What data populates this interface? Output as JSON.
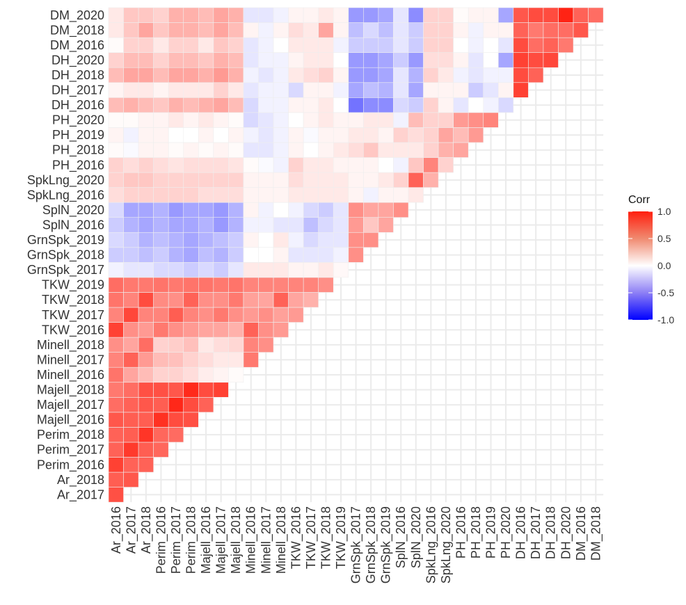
{
  "chart_data": {
    "type": "heatmap",
    "title": "",
    "xlabel": "",
    "ylabel": "",
    "variables": [
      "Ar_2016",
      "Ar_2017",
      "Ar_2018",
      "Perim_2016",
      "Perim_2017",
      "Perim_2018",
      "Majell_2016",
      "Majell_2017",
      "Majell_2018",
      "Minell_2016",
      "Minell_2017",
      "Minell_2018",
      "TKW_2016",
      "TKW_2017",
      "TKW_2018",
      "TKW_2019",
      "GrnSpk_2017",
      "GrnSpk_2018",
      "GrnSpk_2019",
      "SplN_2016",
      "SplN_2020",
      "SpkLng_2016",
      "SpkLng_2020",
      "PH_2016",
      "PH_2018",
      "PH_2019",
      "PH_2020",
      "DH_2016",
      "DH_2017",
      "DH_2018",
      "DH_2020",
      "DM_2016",
      "DM_2018",
      "DM_2020"
    ],
    "x_labels": [
      "Ar_2016",
      "Ar_2017",
      "Ar_2018",
      "Perim_2016",
      "Perim_2017",
      "Perim_2018",
      "Majell_2016",
      "Majell_2017",
      "Majell_2018",
      "Minell_2016",
      "Minell_2017",
      "Minell_2018",
      "TKW_2016",
      "TKW_2017",
      "TKW_2018",
      "TKW_2019",
      "GrnSpk_2017",
      "GrnSpk_2018",
      "GrnSpk_2019",
      "SplN_2016",
      "SplN_2020",
      "SpkLng_2016",
      "SpkLng_2020",
      "PH_2016",
      "PH_2018",
      "PH_2019",
      "PH_2020",
      "DH_2016",
      "DH_2017",
      "DH_2018",
      "DH_2020",
      "DM_2016",
      "DM_2018"
    ],
    "y_labels": [
      "Ar_2017",
      "Ar_2018",
      "Perim_2016",
      "Perim_2017",
      "Perim_2018",
      "Majell_2016",
      "Majell_2017",
      "Majell_2018",
      "Minell_2016",
      "Minell_2017",
      "Minell_2018",
      "TKW_2016",
      "TKW_2017",
      "TKW_2018",
      "TKW_2019",
      "GrnSpk_2017",
      "GrnSpk_2018",
      "GrnSpk_2019",
      "SplN_2016",
      "SplN_2020",
      "SpkLng_2016",
      "SpkLng_2020",
      "PH_2016",
      "PH_2018",
      "PH_2019",
      "PH_2020",
      "DH_2016",
      "DH_2017",
      "DH_2018",
      "DH_2020",
      "DM_2016",
      "DM_2018",
      "DM_2020"
    ],
    "values": [
      [
        0.78
      ],
      [
        0.72,
        0.75
      ],
      [
        0.85,
        0.7,
        0.7
      ],
      [
        0.7,
        0.88,
        0.72,
        0.68
      ],
      [
        0.7,
        0.72,
        0.9,
        0.68,
        0.66
      ],
      [
        0.75,
        0.72,
        0.72,
        0.92,
        0.8,
        0.78
      ],
      [
        0.65,
        0.7,
        0.75,
        0.72,
        0.96,
        0.8,
        0.7
      ],
      [
        0.6,
        0.65,
        0.78,
        0.78,
        0.75,
        0.95,
        0.8,
        0.85
      ],
      [
        0.62,
        0.4,
        0.3,
        0.2,
        0.2,
        0.15,
        0.08,
        0.05,
        0.02
      ],
      [
        0.55,
        0.7,
        0.45,
        0.3,
        0.28,
        0.2,
        0.15,
        0.1,
        0.1,
        0.6
      ],
      [
        0.5,
        0.4,
        0.65,
        0.2,
        0.22,
        0.28,
        0.1,
        0.15,
        0.18,
        0.55,
        0.5
      ],
      [
        0.85,
        0.5,
        0.45,
        0.6,
        0.5,
        0.45,
        0.4,
        0.4,
        0.35,
        0.7,
        0.5,
        0.45
      ],
      [
        0.55,
        0.82,
        0.55,
        0.55,
        0.72,
        0.55,
        0.5,
        0.6,
        0.5,
        0.45,
        0.5,
        0.42,
        0.45
      ],
      [
        0.62,
        0.55,
        0.8,
        0.52,
        0.5,
        0.7,
        0.5,
        0.5,
        0.6,
        0.42,
        0.4,
        0.7,
        0.4,
        0.35
      ],
      [
        0.65,
        0.6,
        0.6,
        0.62,
        0.6,
        0.62,
        0.62,
        0.6,
        0.62,
        0.55,
        0.55,
        0.55,
        0.55,
        0.55,
        0.5
      ],
      [
        -0.05,
        -0.1,
        -0.1,
        -0.15,
        -0.15,
        -0.2,
        -0.15,
        -0.2,
        -0.1,
        0.1,
        0.1,
        0.1,
        0.05,
        0.05,
        0.1,
        0.03
      ],
      [
        -0.2,
        -0.2,
        -0.25,
        -0.2,
        -0.3,
        -0.35,
        -0.25,
        -0.3,
        -0.2,
        0.0,
        0.0,
        0.05,
        -0.1,
        -0.1,
        -0.1,
        -0.05,
        0.5
      ],
      [
        -0.15,
        -0.2,
        -0.3,
        -0.25,
        -0.3,
        -0.35,
        -0.3,
        -0.25,
        -0.2,
        0.05,
        0.0,
        0.1,
        -0.05,
        -0.15,
        -0.1,
        -0.1,
        0.5,
        0.5
      ],
      [
        -0.2,
        -0.3,
        -0.35,
        -0.3,
        -0.35,
        -0.35,
        -0.3,
        -0.4,
        -0.3,
        -0.05,
        -0.05,
        -0.1,
        -0.1,
        -0.25,
        -0.15,
        -0.1,
        0.45,
        0.25,
        0.4
      ],
      [
        -0.15,
        -0.35,
        -0.35,
        -0.3,
        -0.4,
        -0.35,
        -0.35,
        -0.4,
        -0.3,
        0.05,
        -0.05,
        0.0,
        -0.05,
        -0.15,
        -0.2,
        -0.1,
        0.5,
        0.4,
        0.4,
        0.5
      ],
      [
        0.15,
        0.2,
        0.2,
        0.2,
        0.2,
        0.2,
        0.15,
        0.15,
        0.15,
        0.05,
        0.05,
        0.05,
        0.1,
        0.1,
        0.1,
        0.1,
        0.05,
        -0.05,
        0.05,
        0.05,
        0.1
      ],
      [
        0.2,
        0.25,
        0.25,
        0.2,
        0.2,
        0.2,
        0.2,
        0.2,
        0.2,
        0.05,
        0.05,
        0.05,
        0.15,
        0.1,
        0.1,
        0.1,
        0.05,
        0.05,
        0.1,
        0.2,
        0.7,
        0.35
      ],
      [
        0.2,
        0.15,
        0.2,
        0.15,
        0.12,
        0.15,
        0.15,
        0.15,
        0.12,
        0.02,
        -0.02,
        -0.05,
        0.2,
        0.1,
        0.1,
        0.05,
        0.05,
        0.05,
        0.0,
        -0.05,
        0.25,
        0.55,
        0.2
      ],
      [
        0.02,
        -0.02,
        0.05,
        0.05,
        0.02,
        0.05,
        0.02,
        0.05,
        0.02,
        -0.1,
        -0.1,
        -0.05,
        0.05,
        0.0,
        0.05,
        0.1,
        0.15,
        0.25,
        0.1,
        0.1,
        0.1,
        0.2,
        0.35,
        0.4
      ],
      [
        0.05,
        -0.05,
        0.05,
        0.05,
        0.0,
        0.0,
        0.05,
        0.0,
        0.05,
        -0.05,
        -0.1,
        -0.05,
        0.05,
        -0.02,
        0.05,
        0.05,
        0.1,
        0.1,
        0.05,
        0.2,
        0.15,
        0.2,
        0.4,
        0.3,
        0.45
      ],
      [
        0.02,
        0.02,
        0.05,
        0.05,
        0.1,
        0.05,
        0.1,
        0.05,
        0.02,
        -0.15,
        -0.1,
        -0.05,
        0.0,
        0.05,
        0.1,
        0.05,
        0.05,
        0.1,
        0.1,
        -0.05,
        0.3,
        0.2,
        0.2,
        0.45,
        0.5,
        0.55
      ],
      [
        0.3,
        0.35,
        0.3,
        0.25,
        0.35,
        0.3,
        0.35,
        0.4,
        0.3,
        -0.15,
        -0.05,
        -0.05,
        0.05,
        0.05,
        0.1,
        0.0,
        -0.55,
        -0.45,
        -0.45,
        -0.15,
        -0.2,
        0.2,
        0.05,
        -0.1,
        0.0,
        -0.05,
        -0.15
      ],
      [
        0.05,
        0.1,
        0.1,
        0.05,
        0.1,
        0.1,
        0.1,
        0.2,
        0.1,
        -0.1,
        -0.05,
        -0.05,
        -0.15,
        0.05,
        0.05,
        -0.05,
        -0.35,
        -0.25,
        -0.3,
        -0.1,
        -0.35,
        0.05,
        0.05,
        0.05,
        -0.2,
        -0.1,
        0.05,
        0.85
      ],
      [
        0.3,
        0.4,
        0.4,
        0.3,
        0.4,
        0.4,
        0.35,
        0.45,
        0.35,
        -0.05,
        -0.1,
        -0.05,
        0.1,
        0.15,
        0.2,
        0.05,
        -0.4,
        -0.4,
        -0.35,
        -0.1,
        -0.3,
        0.2,
        0.1,
        -0.05,
        -0.1,
        -0.05,
        -0.05,
        0.8,
        0.7
      ],
      [
        0.2,
        0.3,
        0.3,
        0.2,
        0.3,
        0.3,
        0.25,
        0.35,
        0.3,
        -0.1,
        -0.05,
        -0.05,
        0.05,
        0.1,
        0.1,
        0.0,
        -0.4,
        -0.4,
        -0.35,
        -0.2,
        -0.4,
        0.15,
        0.15,
        0.05,
        -0.1,
        0.0,
        -0.35,
        0.85,
        0.8,
        0.82
      ],
      [
        0.02,
        0.2,
        0.2,
        0.1,
        0.2,
        0.2,
        0.1,
        0.25,
        0.2,
        -0.1,
        -0.05,
        0.0,
        0.1,
        0.1,
        0.1,
        -0.05,
        -0.2,
        -0.2,
        -0.2,
        -0.1,
        -0.2,
        0.2,
        0.2,
        0.0,
        -0.05,
        0.0,
        -0.1,
        0.8,
        0.65,
        0.7,
        0.6
      ],
      [
        0.1,
        0.25,
        0.4,
        0.25,
        0.35,
        0.35,
        0.3,
        0.4,
        0.3,
        0.05,
        -0.05,
        0.05,
        0.15,
        0.1,
        0.4,
        0.05,
        -0.25,
        -0.15,
        -0.25,
        -0.1,
        -0.2,
        0.2,
        0.2,
        0.05,
        -0.05,
        0.05,
        0.05,
        0.7,
        0.6,
        0.65,
        0.65,
        0.75
      ],
      [
        0.1,
        0.25,
        0.25,
        0.2,
        0.35,
        0.35,
        0.3,
        0.4,
        0.35,
        -0.1,
        -0.1,
        -0.05,
        0.05,
        0.05,
        0.1,
        0.05,
        -0.4,
        -0.4,
        -0.35,
        -0.1,
        -0.45,
        0.2,
        0.2,
        0.02,
        0.05,
        0.05,
        -0.35,
        0.75,
        0.8,
        0.8,
        0.98,
        0.7,
        0.65
      ]
    ],
    "legend": {
      "title": "Corr",
      "ticks": [
        1.0,
        0.5,
        0.0,
        -0.5,
        -1.0
      ],
      "tick_labels": [
        "1.0",
        "0.5",
        "0.0",
        "-0.5",
        "-1.0"
      ],
      "placement": "right",
      "low_color": "#0000ff",
      "mid_color": "#ffffff",
      "high_color": "#ff1f0f"
    },
    "grid": true,
    "grid_color": "#ebebeb"
  }
}
